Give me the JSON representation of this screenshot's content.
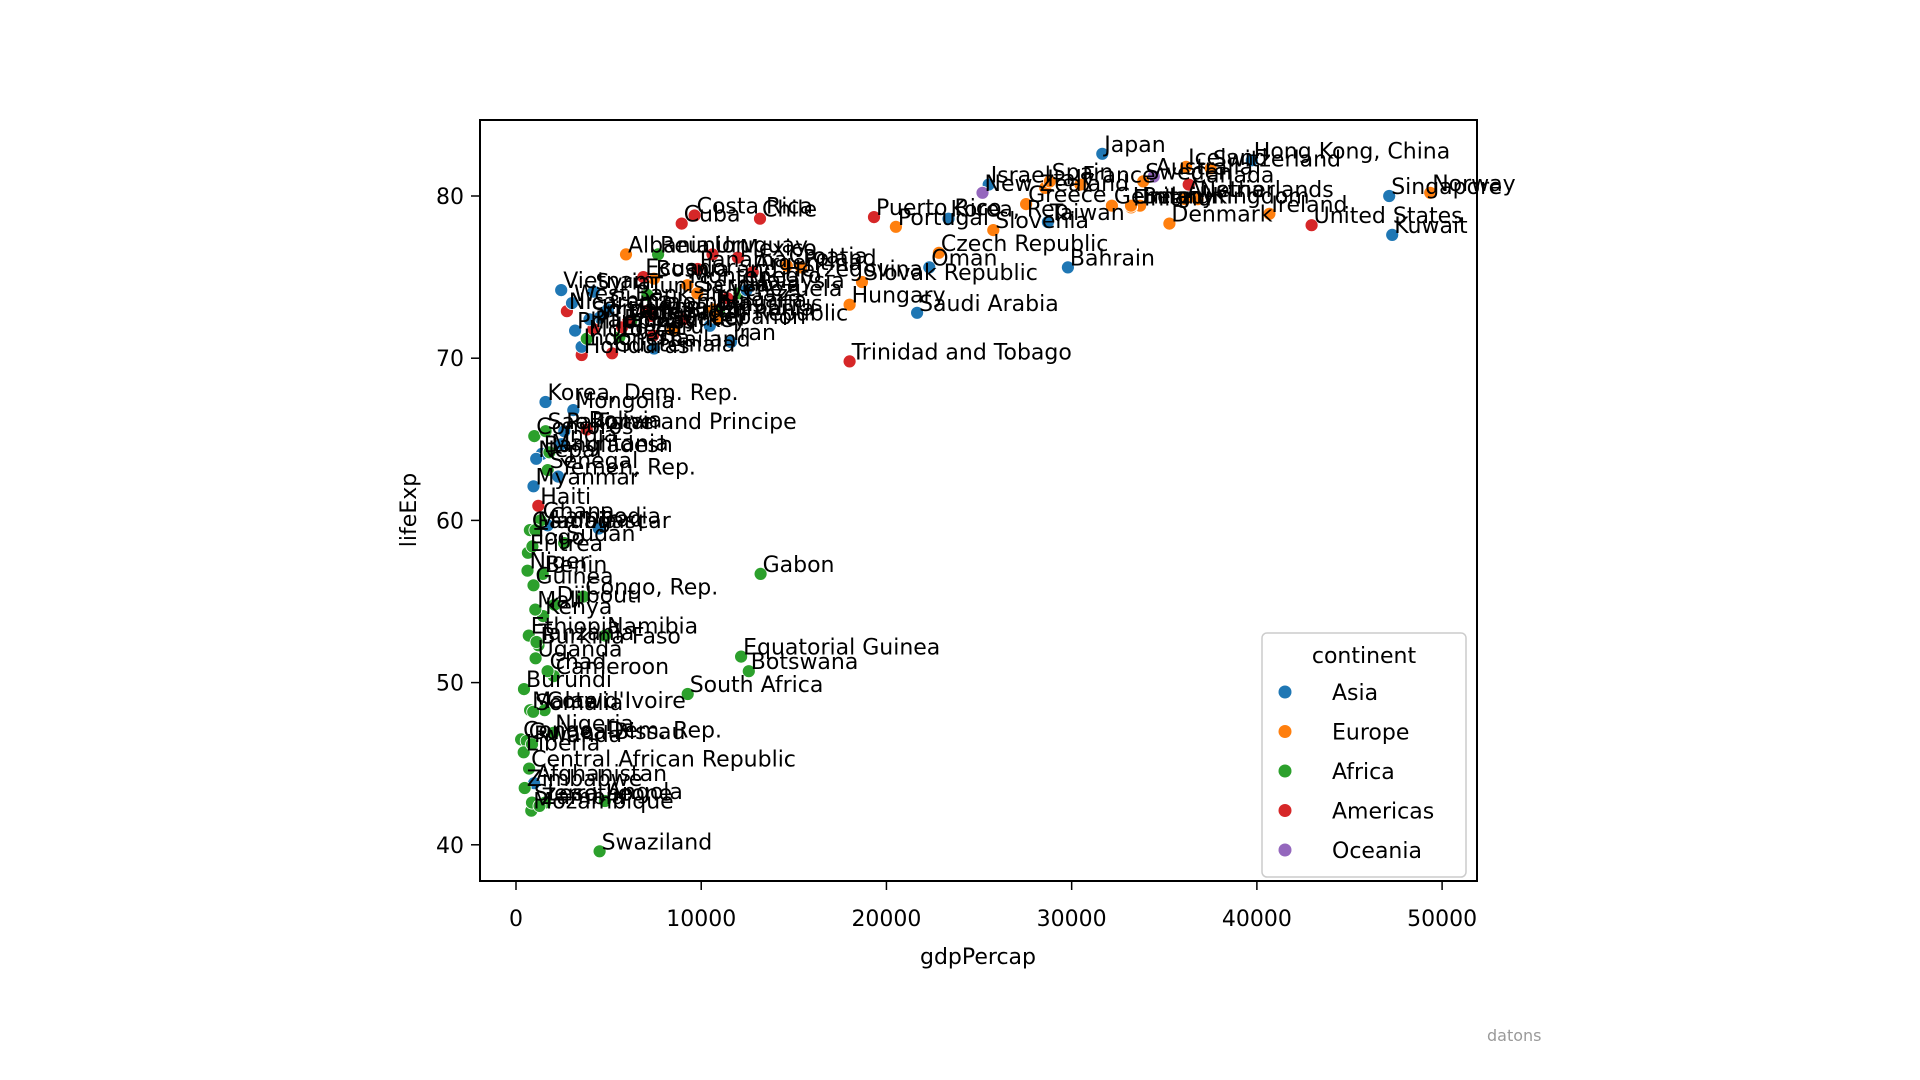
{
  "watermark": "datons",
  "chart_data": {
    "type": "scatter",
    "title": "",
    "xlabel": "gdpPercap",
    "ylabel": "lifeExp",
    "xlim": [
      -2000,
      51900
    ],
    "ylim": [
      37.5,
      84.5
    ],
    "xticks": [
      0,
      10000,
      20000,
      30000,
      40000,
      50000
    ],
    "yticks": [
      40,
      50,
      60,
      70,
      80
    ],
    "grid": false,
    "legend": {
      "title": "continent",
      "position": "lower right",
      "entries": [
        {
          "label": "Asia",
          "color": "#1f77b4"
        },
        {
          "label": "Europe",
          "color": "#ff7f0e"
        },
        {
          "label": "Africa",
          "color": "#2ca02c"
        },
        {
          "label": "Americas",
          "color": "#d62728"
        },
        {
          "label": "Oceania",
          "color": "#9467bd"
        }
      ]
    },
    "points": [
      {
        "country": "Afghanistan",
        "continent": "Asia",
        "gdpPercap": 975,
        "lifeExp": 43.8
      },
      {
        "country": "Albania",
        "continent": "Europe",
        "gdpPercap": 5937,
        "lifeExp": 76.4
      },
      {
        "country": "Algeria",
        "continent": "Africa",
        "gdpPercap": 6223,
        "lifeExp": 72.3
      },
      {
        "country": "Angola",
        "continent": "Africa",
        "gdpPercap": 4797,
        "lifeExp": 42.7
      },
      {
        "country": "Argentina",
        "continent": "Americas",
        "gdpPercap": 12779,
        "lifeExp": 75.3
      },
      {
        "country": "Australia",
        "continent": "Oceania",
        "gdpPercap": 34435,
        "lifeExp": 81.2
      },
      {
        "country": "Austria",
        "continent": "Europe",
        "gdpPercap": 36126,
        "lifeExp": 79.8
      },
      {
        "country": "Bahrain",
        "continent": "Asia",
        "gdpPercap": 29796,
        "lifeExp": 75.6
      },
      {
        "country": "Bangladesh",
        "continent": "Asia",
        "gdpPercap": 1391,
        "lifeExp": 64.1
      },
      {
        "country": "Belgium",
        "continent": "Europe",
        "gdpPercap": 33693,
        "lifeExp": 79.4
      },
      {
        "country": "Benin",
        "continent": "Africa",
        "gdpPercap": 1441,
        "lifeExp": 56.7
      },
      {
        "country": "Bolivia",
        "continent": "Americas",
        "gdpPercap": 3822,
        "lifeExp": 65.6
      },
      {
        "country": "Bosnia and Herzegovina",
        "continent": "Europe",
        "gdpPercap": 7446,
        "lifeExp": 74.9
      },
      {
        "country": "Botswana",
        "continent": "Africa",
        "gdpPercap": 12570,
        "lifeExp": 50.7
      },
      {
        "country": "Brazil",
        "continent": "Americas",
        "gdpPercap": 9066,
        "lifeExp": 72.4
      },
      {
        "country": "Bulgaria",
        "continent": "Europe",
        "gdpPercap": 10681,
        "lifeExp": 73.0
      },
      {
        "country": "Burkina Faso",
        "continent": "Africa",
        "gdpPercap": 1217,
        "lifeExp": 52.3
      },
      {
        "country": "Burundi",
        "continent": "Africa",
        "gdpPercap": 430,
        "lifeExp": 49.6
      },
      {
        "country": "Cambodia",
        "continent": "Asia",
        "gdpPercap": 1714,
        "lifeExp": 59.7
      },
      {
        "country": "Cameroon",
        "continent": "Africa",
        "gdpPercap": 2042,
        "lifeExp": 50.4
      },
      {
        "country": "Canada",
        "continent": "Americas",
        "gdpPercap": 36319,
        "lifeExp": 80.7
      },
      {
        "country": "Central African Republic",
        "continent": "Africa",
        "gdpPercap": 706,
        "lifeExp": 44.7
      },
      {
        "country": "Chad",
        "continent": "Africa",
        "gdpPercap": 1704,
        "lifeExp": 50.7
      },
      {
        "country": "Chile",
        "continent": "Americas",
        "gdpPercap": 13172,
        "lifeExp": 78.6
      },
      {
        "country": "China",
        "continent": "Asia",
        "gdpPercap": 4959,
        "lifeExp": 73.0
      },
      {
        "country": "Colombia",
        "continent": "Americas",
        "gdpPercap": 7007,
        "lifeExp": 72.9
      },
      {
        "country": "Comoros",
        "continent": "Africa",
        "gdpPercap": 986,
        "lifeExp": 65.2
      },
      {
        "country": "Congo, Dem. Rep.",
        "continent": "Africa",
        "gdpPercap": 278,
        "lifeExp": 46.5
      },
      {
        "country": "Congo, Rep.",
        "continent": "Africa",
        "gdpPercap": 3633,
        "lifeExp": 55.3
      },
      {
        "country": "Costa Rica",
        "continent": "Americas",
        "gdpPercap": 9645,
        "lifeExp": 78.8
      },
      {
        "country": "Cote d'Ivoire",
        "continent": "Africa",
        "gdpPercap": 1545,
        "lifeExp": 48.3
      },
      {
        "country": "Croatia",
        "continent": "Europe",
        "gdpPercap": 14619,
        "lifeExp": 75.7
      },
      {
        "country": "Cuba",
        "continent": "Americas",
        "gdpPercap": 8948,
        "lifeExp": 78.3
      },
      {
        "country": "Czech Republic",
        "continent": "Europe",
        "gdpPercap": 22833,
        "lifeExp": 76.5
      },
      {
        "country": "Denmark",
        "continent": "Europe",
        "gdpPercap": 35278,
        "lifeExp": 78.3
      },
      {
        "country": "Djibouti",
        "continent": "Africa",
        "gdpPercap": 2082,
        "lifeExp": 54.8
      },
      {
        "country": "Dominican Republic",
        "continent": "Americas",
        "gdpPercap": 6025,
        "lifeExp": 72.2
      },
      {
        "country": "Ecuador",
        "continent": "Americas",
        "gdpPercap": 6873,
        "lifeExp": 75.0
      },
      {
        "country": "Egypt",
        "continent": "Africa",
        "gdpPercap": 5581,
        "lifeExp": 71.3
      },
      {
        "country": "El Salvador",
        "continent": "Americas",
        "gdpPercap": 5728,
        "lifeExp": 71.9
      },
      {
        "country": "Equatorial Guinea",
        "continent": "Africa",
        "gdpPercap": 12154,
        "lifeExp": 51.6
      },
      {
        "country": "Eritrea",
        "continent": "Africa",
        "gdpPercap": 641,
        "lifeExp": 58.0
      },
      {
        "country": "Ethiopia",
        "continent": "Africa",
        "gdpPercap": 691,
        "lifeExp": 52.9
      },
      {
        "country": "Finland",
        "continent": "Europe",
        "gdpPercap": 33207,
        "lifeExp": 79.3
      },
      {
        "country": "France",
        "continent": "Europe",
        "gdpPercap": 30470,
        "lifeExp": 80.7
      },
      {
        "country": "Gabon",
        "continent": "Africa",
        "gdpPercap": 13206,
        "lifeExp": 56.7
      },
      {
        "country": "Gambia",
        "continent": "Africa",
        "gdpPercap": 753,
        "lifeExp": 59.4
      },
      {
        "country": "Germany",
        "continent": "Europe",
        "gdpPercap": 32170,
        "lifeExp": 79.4
      },
      {
        "country": "Ghana",
        "continent": "Africa",
        "gdpPercap": 1328,
        "lifeExp": 60.0
      },
      {
        "country": "Greece",
        "continent": "Europe",
        "gdpPercap": 27538,
        "lifeExp": 79.5
      },
      {
        "country": "Guatemala",
        "continent": "Americas",
        "gdpPercap": 5186,
        "lifeExp": 70.3
      },
      {
        "country": "Guinea",
        "continent": "Africa",
        "gdpPercap": 943,
        "lifeExp": 56.0
      },
      {
        "country": "Guinea-Bissau",
        "continent": "Africa",
        "gdpPercap": 579,
        "lifeExp": 46.4
      },
      {
        "country": "Haiti",
        "continent": "Americas",
        "gdpPercap": 1202,
        "lifeExp": 60.9
      },
      {
        "country": "Honduras",
        "continent": "Americas",
        "gdpPercap": 3548,
        "lifeExp": 70.2
      },
      {
        "country": "Hong Kong, China",
        "continent": "Asia",
        "gdpPercap": 39725,
        "lifeExp": 82.2
      },
      {
        "country": "Hungary",
        "continent": "Europe",
        "gdpPercap": 18009,
        "lifeExp": 73.3
      },
      {
        "country": "Iceland",
        "continent": "Europe",
        "gdpPercap": 36181,
        "lifeExp": 81.8
      },
      {
        "country": "India",
        "continent": "Asia",
        "gdpPercap": 2452,
        "lifeExp": 64.7
      },
      {
        "country": "Indonesia",
        "continent": "Asia",
        "gdpPercap": 3541,
        "lifeExp": 70.7
      },
      {
        "country": "Iran",
        "continent": "Asia",
        "gdpPercap": 11606,
        "lifeExp": 71.0
      },
      {
        "country": "Iraq",
        "continent": "Asia",
        "gdpPercap": 4471,
        "lifeExp": 59.5
      },
      {
        "country": "Ireland",
        "continent": "Europe",
        "gdpPercap": 40676,
        "lifeExp": 78.9
      },
      {
        "country": "Israel",
        "continent": "Asia",
        "gdpPercap": 25523,
        "lifeExp": 80.7
      },
      {
        "country": "Italy",
        "continent": "Europe",
        "gdpPercap": 28570,
        "lifeExp": 80.5
      },
      {
        "country": "Jamaica",
        "continent": "Americas",
        "gdpPercap": 7321,
        "lifeExp": 72.6
      },
      {
        "country": "Japan",
        "continent": "Asia",
        "gdpPercap": 31656,
        "lifeExp": 82.6
      },
      {
        "country": "Jordan",
        "continent": "Asia",
        "gdpPercap": 4519,
        "lifeExp": 72.5
      },
      {
        "country": "Kenya",
        "continent": "Africa",
        "gdpPercap": 1463,
        "lifeExp": 54.1
      },
      {
        "country": "Korea, Dem. Rep.",
        "continent": "Asia",
        "gdpPercap": 1593,
        "lifeExp": 67.3
      },
      {
        "country": "Korea, Rep.",
        "continent": "Asia",
        "gdpPercap": 23348,
        "lifeExp": 78.6
      },
      {
        "country": "Kuwait",
        "continent": "Asia",
        "gdpPercap": 47307,
        "lifeExp": 77.6
      },
      {
        "country": "Lebanon",
        "continent": "Asia",
        "gdpPercap": 10461,
        "lifeExp": 72.0
      },
      {
        "country": "Lesotho",
        "continent": "Africa",
        "gdpPercap": 1569,
        "lifeExp": 42.6
      },
      {
        "country": "Liberia",
        "continent": "Africa",
        "gdpPercap": 415,
        "lifeExp": 45.7
      },
      {
        "country": "Libya",
        "continent": "Africa",
        "gdpPercap": 12057,
        "lifeExp": 74.0
      },
      {
        "country": "Madagascar",
        "continent": "Africa",
        "gdpPercap": 1045,
        "lifeExp": 59.4
      },
      {
        "country": "Malawi",
        "continent": "Africa",
        "gdpPercap": 759,
        "lifeExp": 48.3
      },
      {
        "country": "Malaysia",
        "continent": "Asia",
        "gdpPercap": 12452,
        "lifeExp": 74.2
      },
      {
        "country": "Mali",
        "continent": "Africa",
        "gdpPercap": 1043,
        "lifeExp": 54.5
      },
      {
        "country": "Mauritania",
        "continent": "Africa",
        "gdpPercap": 1803,
        "lifeExp": 64.2
      },
      {
        "country": "Mauritius",
        "continent": "Africa",
        "gdpPercap": 10957,
        "lifeExp": 72.8
      },
      {
        "country": "Mexico",
        "continent": "Americas",
        "gdpPercap": 11978,
        "lifeExp": 76.2
      },
      {
        "country": "Mongolia",
        "continent": "Asia",
        "gdpPercap": 3096,
        "lifeExp": 66.8
      },
      {
        "country": "Montenegro",
        "continent": "Europe",
        "gdpPercap": 9254,
        "lifeExp": 74.5
      },
      {
        "country": "Morocco",
        "continent": "Africa",
        "gdpPercap": 3820,
        "lifeExp": 71.2
      },
      {
        "country": "Mozambique",
        "continent": "Africa",
        "gdpPercap": 824,
        "lifeExp": 42.1
      },
      {
        "country": "Myanmar",
        "continent": "Asia",
        "gdpPercap": 944,
        "lifeExp": 62.1
      },
      {
        "country": "Namibia",
        "continent": "Africa",
        "gdpPercap": 4811,
        "lifeExp": 52.9
      },
      {
        "country": "Nepal",
        "continent": "Asia",
        "gdpPercap": 1091,
        "lifeExp": 63.8
      },
      {
        "country": "Netherlands",
        "continent": "Europe",
        "gdpPercap": 36798,
        "lifeExp": 79.8
      },
      {
        "country": "New Zealand",
        "continent": "Oceania",
        "gdpPercap": 25185,
        "lifeExp": 80.2
      },
      {
        "country": "Nicaragua",
        "continent": "Americas",
        "gdpPercap": 2749,
        "lifeExp": 72.9
      },
      {
        "country": "Niger",
        "continent": "Africa",
        "gdpPercap": 620,
        "lifeExp": 56.9
      },
      {
        "country": "Nigeria",
        "continent": "Africa",
        "gdpPercap": 2014,
        "lifeExp": 46.9
      },
      {
        "country": "Norway",
        "continent": "Europe",
        "gdpPercap": 49357,
        "lifeExp": 80.2
      },
      {
        "country": "Oman",
        "continent": "Asia",
        "gdpPercap": 22316,
        "lifeExp": 75.6
      },
      {
        "country": "Pakistan",
        "continent": "Asia",
        "gdpPercap": 2606,
        "lifeExp": 65.5
      },
      {
        "country": "Panama",
        "continent": "Americas",
        "gdpPercap": 9809,
        "lifeExp": 75.5
      },
      {
        "country": "Paraguay",
        "continent": "Americas",
        "gdpPercap": 4173,
        "lifeExp": 71.8
      },
      {
        "country": "Peru",
        "continent": "Americas",
        "gdpPercap": 7409,
        "lifeExp": 71.4
      },
      {
        "country": "Philippines",
        "continent": "Asia",
        "gdpPercap": 3190,
        "lifeExp": 71.7
      },
      {
        "country": "Poland",
        "continent": "Europe",
        "gdpPercap": 15390,
        "lifeExp": 75.6
      },
      {
        "country": "Portugal",
        "continent": "Europe",
        "gdpPercap": 20510,
        "lifeExp": 78.1
      },
      {
        "country": "Puerto Rico",
        "continent": "Americas",
        "gdpPercap": 19329,
        "lifeExp": 78.7
      },
      {
        "country": "Reunion",
        "continent": "Africa",
        "gdpPercap": 7670,
        "lifeExp": 76.4
      },
      {
        "country": "Romania",
        "continent": "Europe",
        "gdpPercap": 10808,
        "lifeExp": 72.5
      },
      {
        "country": "Rwanda",
        "continent": "Africa",
        "gdpPercap": 863,
        "lifeExp": 46.2
      },
      {
        "country": "Sao Tome and Principe",
        "continent": "Africa",
        "gdpPercap": 1598,
        "lifeExp": 65.5
      },
      {
        "country": "Saudi Arabia",
        "continent": "Asia",
        "gdpPercap": 21655,
        "lifeExp": 72.8
      },
      {
        "country": "Senegal",
        "continent": "Africa",
        "gdpPercap": 1712,
        "lifeExp": 63.1
      },
      {
        "country": "Serbia",
        "continent": "Europe",
        "gdpPercap": 9787,
        "lifeExp": 74.0
      },
      {
        "country": "Sierra Leone",
        "continent": "Africa",
        "gdpPercap": 863,
        "lifeExp": 42.6
      },
      {
        "country": "Singapore",
        "continent": "Asia",
        "gdpPercap": 47143,
        "lifeExp": 80.0
      },
      {
        "country": "Slovak Republic",
        "continent": "Europe",
        "gdpPercap": 18678,
        "lifeExp": 74.7
      },
      {
        "country": "Slovenia",
        "continent": "Europe",
        "gdpPercap": 25768,
        "lifeExp": 77.9
      },
      {
        "country": "Somalia",
        "continent": "Africa",
        "gdpPercap": 926,
        "lifeExp": 48.2
      },
      {
        "country": "South Africa",
        "continent": "Africa",
        "gdpPercap": 9270,
        "lifeExp": 49.3
      },
      {
        "country": "Spain",
        "continent": "Europe",
        "gdpPercap": 28821,
        "lifeExp": 80.9
      },
      {
        "country": "Sri Lanka",
        "continent": "Asia",
        "gdpPercap": 3970,
        "lifeExp": 72.4
      },
      {
        "country": "Sudan",
        "continent": "Africa",
        "gdpPercap": 2602,
        "lifeExp": 58.6
      },
      {
        "country": "Swaziland",
        "continent": "Africa",
        "gdpPercap": 4513,
        "lifeExp": 39.6
      },
      {
        "country": "Sweden",
        "continent": "Europe",
        "gdpPercap": 33860,
        "lifeExp": 80.9
      },
      {
        "country": "Switzerland",
        "continent": "Europe",
        "gdpPercap": 37506,
        "lifeExp": 81.7
      },
      {
        "country": "Syria",
        "continent": "Asia",
        "gdpPercap": 4185,
        "lifeExp": 74.1
      },
      {
        "country": "Taiwan",
        "continent": "Asia",
        "gdpPercap": 28718,
        "lifeExp": 78.4
      },
      {
        "country": "Tanzania",
        "continent": "Africa",
        "gdpPercap": 1107,
        "lifeExp": 52.5
      },
      {
        "country": "Thailand",
        "continent": "Asia",
        "gdpPercap": 7458,
        "lifeExp": 70.6
      },
      {
        "country": "Togo",
        "continent": "Africa",
        "gdpPercap": 883,
        "lifeExp": 58.4
      },
      {
        "country": "Trinidad and Tobago",
        "continent": "Americas",
        "gdpPercap": 18009,
        "lifeExp": 69.8
      },
      {
        "country": "Tunisia",
        "continent": "Africa",
        "gdpPercap": 7093,
        "lifeExp": 73.9
      },
      {
        "country": "Turkey",
        "continent": "Europe",
        "gdpPercap": 8458,
        "lifeExp": 71.8
      },
      {
        "country": "Uganda",
        "continent": "Africa",
        "gdpPercap": 1056,
        "lifeExp": 51.5
      },
      {
        "country": "United Kingdom",
        "continent": "Europe",
        "gdpPercap": 33203,
        "lifeExp": 79.4
      },
      {
        "country": "United States",
        "continent": "Americas",
        "gdpPercap": 42952,
        "lifeExp": 78.2
      },
      {
        "country": "Uruguay",
        "continent": "Americas",
        "gdpPercap": 10611,
        "lifeExp": 76.4
      },
      {
        "country": "Venezuela",
        "continent": "Americas",
        "gdpPercap": 11416,
        "lifeExp": 73.7
      },
      {
        "country": "Vietnam",
        "continent": "Asia",
        "gdpPercap": 2442,
        "lifeExp": 74.2
      },
      {
        "country": "West Bank and Gaza",
        "continent": "Asia",
        "gdpPercap": 3026,
        "lifeExp": 73.4
      },
      {
        "country": "Yemen, Rep.",
        "continent": "Asia",
        "gdpPercap": 2281,
        "lifeExp": 62.7
      },
      {
        "country": "Zambia",
        "continent": "Africa",
        "gdpPercap": 1271,
        "lifeExp": 42.4
      },
      {
        "country": "Zimbabwe",
        "continent": "Africa",
        "gdpPercap": 470,
        "lifeExp": 43.5
      }
    ]
  }
}
